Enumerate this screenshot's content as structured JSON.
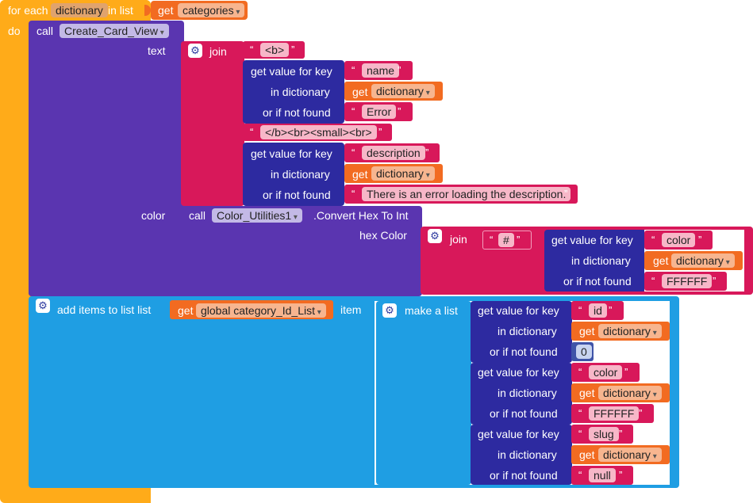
{
  "foreach": {
    "label_for_each": "for each",
    "var_name": "dictionary",
    "label_in_list": "in list",
    "label_get": "get",
    "list_name": "categories",
    "label_do": "do"
  },
  "create_card": {
    "label_call": "call",
    "proc_name": "Create_Card_View",
    "label_text": "text",
    "label_join": "join",
    "str_b_open": "<b>",
    "key1": {
      "label": "get value for key",
      "key": "name",
      "in_dict_label": "in dictionary",
      "get_label": "get",
      "dict_var": "dictionary",
      "not_found_label": "or if not found",
      "not_found": "Error"
    },
    "str_mid": "</b><br><small><br>",
    "key2": {
      "label": "get value for key",
      "key": "description",
      "in_dict_label": "in dictionary",
      "get_label": "get",
      "dict_var": "dictionary",
      "not_found_label": "or if not found",
      "not_found": "There is an error loading the description."
    },
    "label_color": "color",
    "color_call": {
      "label_call": "call",
      "component": "Color_Utilities1",
      "method": ".Convert Hex To Int",
      "label_hex": "hex Color",
      "label_join": "join",
      "str_hash": "#",
      "key": {
        "label": "get value for key",
        "key": "color",
        "in_dict_label": "in dictionary",
        "get_label": "get",
        "dict_var": "dictionary",
        "not_found_label": "or if not found",
        "not_found": "FFFFFF"
      }
    }
  },
  "add_items": {
    "label": "add items to list  list",
    "get_label": "get",
    "list_var": "global category_Id_List",
    "item_label": "item",
    "make_list_label": "make a list",
    "entries": [
      {
        "label": "get value for key",
        "key": "id",
        "in_dict_label": "in dictionary",
        "get_label": "get",
        "dict_var": "dictionary",
        "not_found_label": "or if not found",
        "not_found": "0"
      },
      {
        "label": "get value for key",
        "key": "color",
        "in_dict_label": "in dictionary",
        "get_label": "get",
        "dict_var": "dictionary",
        "not_found_label": "or if not found",
        "not_found": "FFFFFF"
      },
      {
        "label": "get value for key",
        "key": "slug",
        "in_dict_label": "in dictionary",
        "get_label": "get",
        "dict_var": "dictionary",
        "not_found_label": "or if not found",
        "not_found": "null"
      }
    ]
  },
  "colors": {
    "control": "#ffab19",
    "procedure": "#5a35b0",
    "text": "#d8185a",
    "variable": "#f26b21",
    "dictionary": "#2d2aa0",
    "list": "#1f9ee3",
    "math": "#3f54a8"
  }
}
